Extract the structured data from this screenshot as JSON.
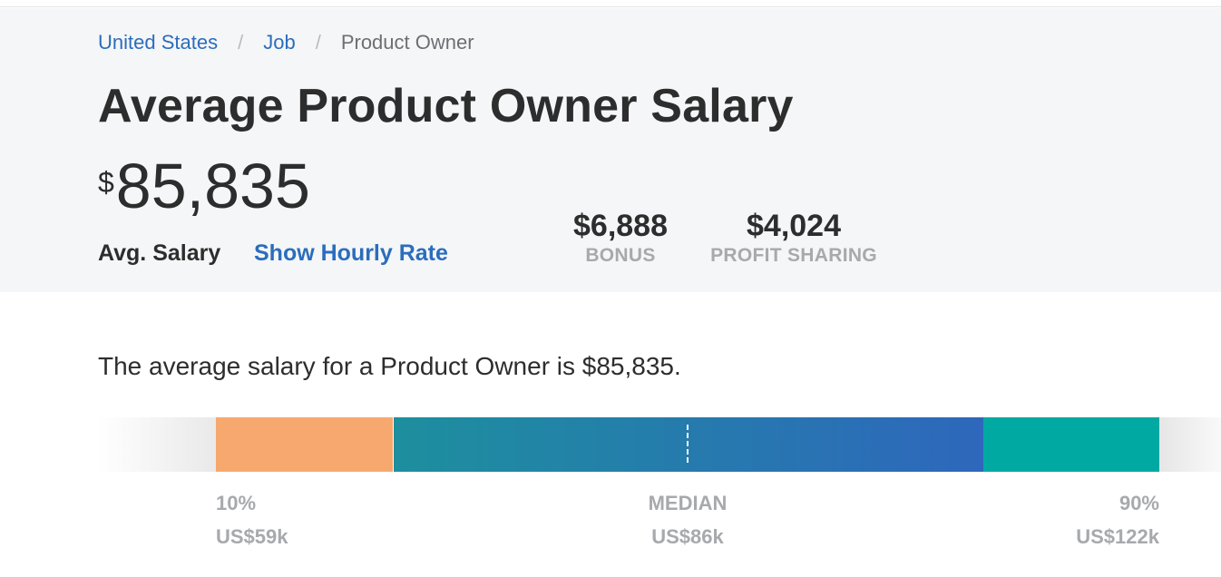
{
  "breadcrumb": {
    "items": [
      "United States",
      "Job"
    ],
    "current": "Product Owner",
    "separator": "/"
  },
  "title": "Average Product Owner Salary",
  "salary": {
    "currency": "$",
    "value": "85,835",
    "label": "Avg. Salary",
    "hourly_link": "Show Hourly Rate"
  },
  "stats": [
    {
      "value": "$6,888",
      "label": "BONUS"
    },
    {
      "value": "$4,024",
      "label": "PROFIT SHARING"
    }
  ],
  "summary": "The average salary for a Product Owner is $85,835.",
  "distribution": {
    "low": {
      "label": "10%",
      "value": "US$59k"
    },
    "median": {
      "label": "MEDIAN",
      "value": "US$86k"
    },
    "high": {
      "label": "90%",
      "value": "US$122k"
    },
    "colors": {
      "low": "#f7a86e",
      "mid_start": "#1d8f9e",
      "mid_end": "#2e67bc",
      "high": "#00aaa2"
    }
  },
  "colors": {
    "link": "#2b6dbd",
    "header_bg": "#f5f6f7",
    "muted": "#a7a9ad"
  }
}
